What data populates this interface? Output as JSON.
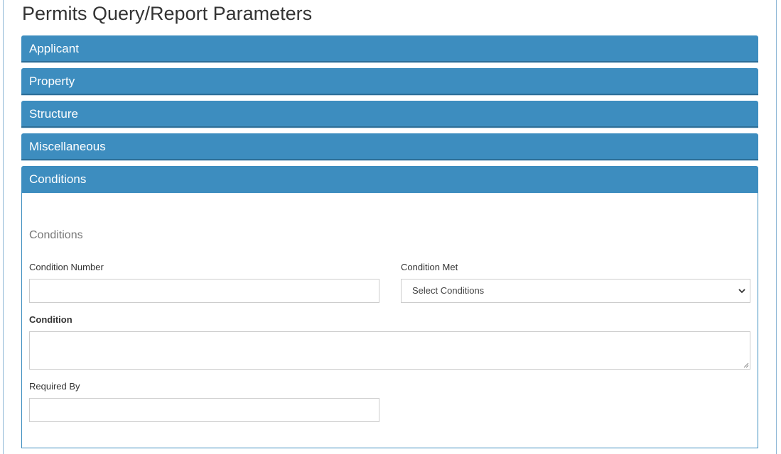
{
  "page": {
    "title": "Permits Query/Report Parameters"
  },
  "accordion": {
    "sections": [
      {
        "label": "Applicant"
      },
      {
        "label": "Property"
      },
      {
        "label": "Structure"
      },
      {
        "label": "Miscellaneous"
      },
      {
        "label": "Conditions"
      }
    ]
  },
  "conditions": {
    "section_title": "Conditions",
    "condition_number": {
      "label": "Condition Number",
      "value": ""
    },
    "condition_met": {
      "label": "Condition Met",
      "selected": "Select Conditions",
      "icon": "chevron-down-icon"
    },
    "condition": {
      "label": "Condition",
      "value": ""
    },
    "required_by": {
      "label": "Required By",
      "value": ""
    }
  },
  "colors": {
    "header_bg": "#3d8dbf",
    "header_text": "#ffffff",
    "border": "#cccccc"
  }
}
